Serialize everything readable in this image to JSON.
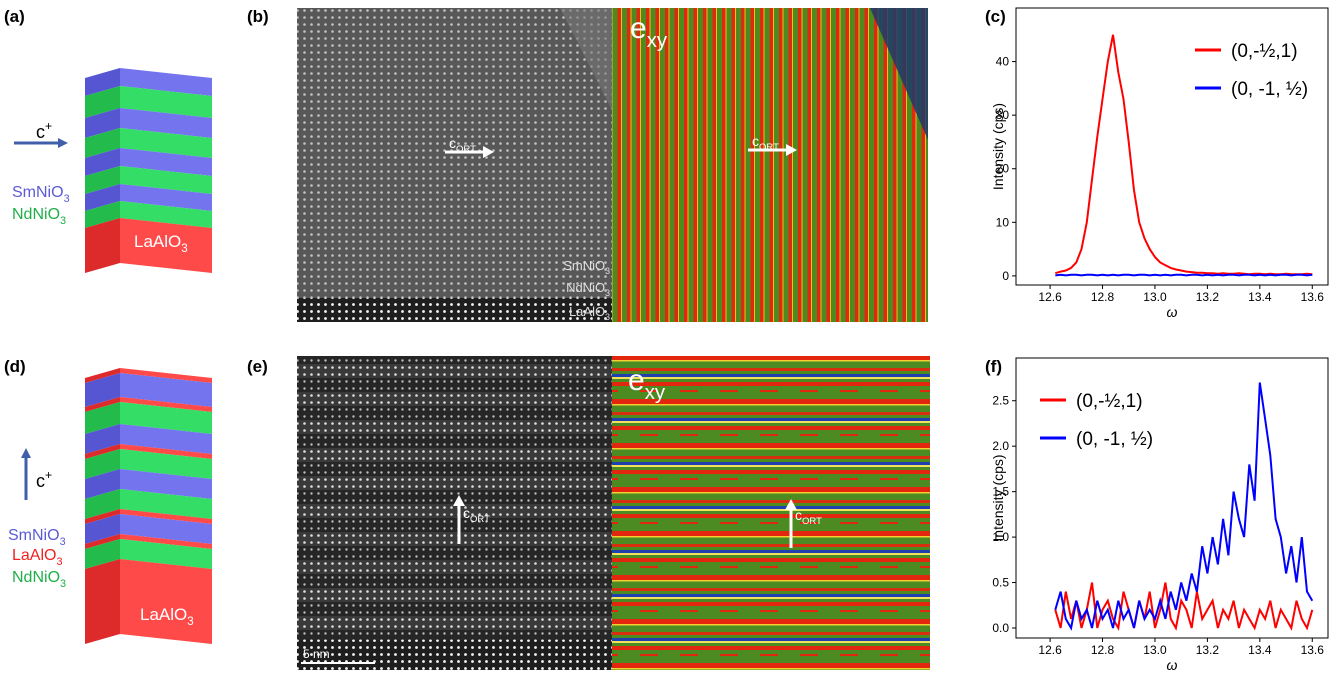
{
  "panel_labels": [
    "(a)",
    "(b)",
    "(c)",
    "(d)",
    "(e)",
    "(f)"
  ],
  "panel_a": {
    "axis": {
      "text": "c",
      "sup": "+"
    },
    "layers": [
      {
        "text": "SmNiO",
        "sub": "3"
      },
      {
        "text": "NdNiO",
        "sub": "3"
      }
    ],
    "substrate": {
      "text": "LaAlO",
      "sub": "3"
    }
  },
  "panel_b": {
    "arrow_left": {
      "text": "c",
      "sub": "ORT"
    },
    "arrow_right": {
      "text": "c",
      "sub": "ORT"
    },
    "map_label": {
      "text": "e",
      "sub": "xy"
    },
    "layer_labels": [
      {
        "text": "SmNiO",
        "sub": "3"
      },
      {
        "text": "NdNiO",
        "sub": "3"
      },
      {
        "text": "LaAlO",
        "sub": "3"
      }
    ]
  },
  "panel_d": {
    "axis": {
      "text": "c",
      "sup": "+"
    },
    "layers": [
      {
        "text": "SmNiO",
        "sub": "3"
      },
      {
        "text": "LaAlO",
        "sub": "3"
      },
      {
        "text": "NdNiO",
        "sub": "3"
      }
    ],
    "substrate": {
      "text": "LaAlO",
      "sub": "3"
    }
  },
  "panel_e": {
    "arrow_left": {
      "text": "c",
      "sub": "ORT"
    },
    "arrow_right": {
      "text": "c",
      "sub": "ORT"
    },
    "map_label": {
      "text": "e",
      "sub": "xy"
    },
    "scale_bar": "5  nm"
  },
  "chart_data": [
    {
      "type": "line",
      "xlabel": "ω",
      "ylabel": "Intensity (cps)",
      "legend": "upper right",
      "xlim": [
        12.47,
        13.66
      ],
      "ylim": [
        -1.7,
        50
      ],
      "xticks": [
        12.6,
        12.8,
        {
          "value": 13,
          "label": "13.0"
        },
        13.2,
        13.4,
        13.6
      ],
      "yticks": [
        0,
        10,
        20,
        30,
        40
      ],
      "x": [
        12.62,
        12.64,
        12.66,
        12.68,
        12.7,
        12.72,
        12.74,
        12.76,
        12.78,
        12.8,
        12.82,
        12.84,
        12.86,
        12.88,
        12.9,
        12.92,
        12.94,
        12.96,
        12.98,
        13.0,
        13.02,
        13.04,
        13.06,
        13.08,
        13.1,
        13.12,
        13.14,
        13.16,
        13.18,
        13.2,
        13.22,
        13.24,
        13.26,
        13.28,
        13.3,
        13.32,
        13.34,
        13.36,
        13.38,
        13.4,
        13.42,
        13.44,
        13.46,
        13.48,
        13.5,
        13.52,
        13.54,
        13.56,
        13.58,
        13.6
      ],
      "series": [
        {
          "name": "(0,-½,1)",
          "color": "#ff0000",
          "values": [
            0.5,
            0.8,
            1,
            1.5,
            2.5,
            5,
            10,
            18,
            26,
            33,
            40,
            45,
            38,
            33,
            25,
            16,
            10,
            7,
            5,
            3.5,
            2.5,
            2,
            1.5,
            1.2,
            1,
            0.8,
            0.7,
            0.6,
            0.6,
            0.5,
            0.5,
            0.4,
            0.5,
            0.4,
            0.4,
            0.5,
            0.4,
            0.3,
            0.4,
            0.4,
            0.3,
            0.4,
            0.3,
            0.3,
            0.4,
            0.3,
            0.3,
            0.3,
            0.4,
            0.3
          ]
        },
        {
          "name": "(0, -1, ½)",
          "color": "#0000ff",
          "values": [
            0.1,
            0.2,
            0.1,
            0.2,
            0.2,
            0.1,
            0.2,
            0.2,
            0.1,
            0.2,
            0.1,
            0.2,
            0.1,
            0.2,
            0.2,
            0.1,
            0.2,
            0.2,
            0.1,
            0.2,
            0.1,
            0.2,
            0.1,
            0.2,
            0.2,
            0.1,
            0.2,
            0.2,
            0.1,
            0.2,
            0.1,
            0.2,
            0.1,
            0.2,
            0.2,
            0.1,
            0.2,
            0.2,
            0.1,
            0.2,
            0.1,
            0.2,
            0.1,
            0.2,
            0.2,
            0.1,
            0.2,
            0.2,
            0.1,
            0.2
          ]
        }
      ]
    },
    {
      "type": "line",
      "xlabel": "ω",
      "ylabel": "Intensity (cps)",
      "legend": "upper left",
      "xlim": [
        12.47,
        13.66
      ],
      "ylim": [
        -0.11,
        2.97
      ],
      "xticks": [
        12.6,
        12.8,
        {
          "value": 13,
          "label": "13.0"
        },
        13.2,
        13.4,
        13.6
      ],
      "yticks": [
        {
          "value": 0,
          "label": "0.0"
        },
        0.5,
        {
          "value": 1,
          "label": "1.0"
        },
        1.5,
        {
          "value": 2,
          "label": "2.0"
        },
        2.5
      ],
      "x": [
        12.62,
        12.64,
        12.66,
        12.68,
        12.7,
        12.72,
        12.74,
        12.76,
        12.78,
        12.8,
        12.82,
        12.84,
        12.86,
        12.88,
        12.9,
        12.92,
        12.94,
        12.96,
        12.98,
        13.0,
        13.02,
        13.04,
        13.06,
        13.08,
        13.1,
        13.12,
        13.14,
        13.16,
        13.18,
        13.2,
        13.22,
        13.24,
        13.26,
        13.28,
        13.3,
        13.32,
        13.34,
        13.36,
        13.38,
        13.4,
        13.42,
        13.44,
        13.46,
        13.48,
        13.5,
        13.52,
        13.54,
        13.56,
        13.58,
        13.6
      ],
      "series": [
        {
          "name": "(0,-½,1)",
          "color": "#ff0000",
          "values": [
            0.2,
            0.0,
            0.4,
            0.1,
            0.3,
            0.0,
            0.2,
            0.5,
            0.0,
            0.2,
            0.3,
            0.1,
            0.0,
            0.4,
            0.2,
            0.0,
            0.3,
            0.1,
            0.4,
            0.0,
            0.2,
            0.5,
            0.1,
            0.0,
            0.3,
            0.2,
            0.0,
            0.4,
            0.1,
            0.2,
            0.3,
            0.0,
            0.2,
            0.1,
            0.3,
            0.0,
            0.2,
            0.1,
            0.0,
            0.2,
            0.1,
            0.3,
            0.0,
            0.2,
            0.1,
            0.0,
            0.3,
            0.1,
            0.0,
            0.2
          ]
        },
        {
          "name": "(0, -1, ½)",
          "color": "#0000ff",
          "values": [
            0.2,
            0.4,
            0.1,
            0.0,
            0.3,
            0.1,
            0.2,
            0.0,
            0.3,
            0.1,
            0.2,
            0.0,
            0.3,
            0.1,
            0.2,
            0.0,
            0.3,
            0.1,
            0.2,
            0.1,
            0.3,
            0.1,
            0.4,
            0.2,
            0.5,
            0.3,
            0.6,
            0.4,
            0.9,
            0.6,
            1.0,
            0.7,
            1.2,
            0.8,
            1.5,
            1.2,
            1.0,
            1.8,
            1.4,
            2.7,
            2.3,
            1.9,
            1.2,
            1.0,
            0.6,
            0.9,
            0.5,
            1.0,
            0.4,
            0.3
          ]
        }
      ]
    }
  ]
}
